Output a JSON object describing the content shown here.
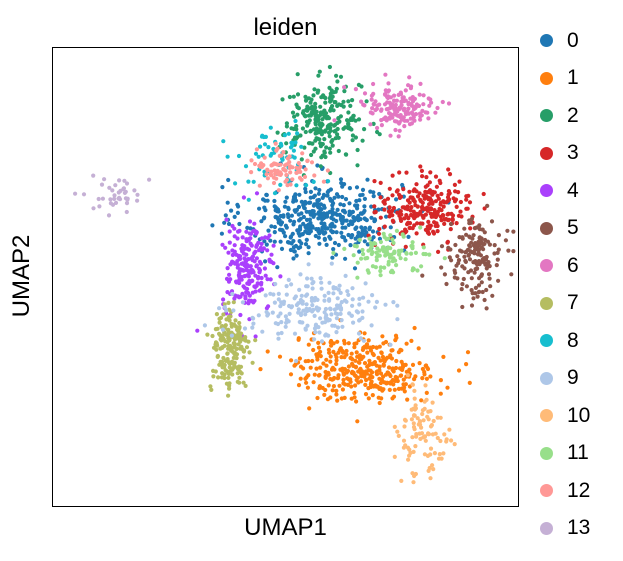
{
  "chart_data": {
    "type": "scatter",
    "title": "leiden",
    "xlabel": "UMAP1",
    "ylabel": "UMAP2",
    "axis_ticks": false,
    "grid": false,
    "legend_position": "right",
    "legend_title": "",
    "xlim": [
      0,
      100
    ],
    "ylim": [
      0,
      100
    ],
    "clusters": [
      {
        "name": "0",
        "color": "#1f77b4",
        "center": [
          58,
          63
        ],
        "spread": [
          12,
          6
        ],
        "count": 420
      },
      {
        "name": "1",
        "color": "#ff7f0e",
        "center": [
          67,
          30
        ],
        "spread": [
          11,
          5
        ],
        "count": 360
      },
      {
        "name": "2",
        "color": "#279e68",
        "center": [
          58,
          84
        ],
        "spread": [
          6,
          6
        ],
        "count": 240
      },
      {
        "name": "3",
        "color": "#d62728",
        "center": [
          80,
          65
        ],
        "spread": [
          7,
          5
        ],
        "count": 250
      },
      {
        "name": "4",
        "color": "#aa40fc",
        "center": [
          42,
          52
        ],
        "spread": [
          4,
          7
        ],
        "count": 200
      },
      {
        "name": "5",
        "color": "#8c564b",
        "center": [
          91,
          54
        ],
        "spread": [
          4,
          6
        ],
        "count": 160
      },
      {
        "name": "6",
        "color": "#e377c2",
        "center": [
          74,
          87
        ],
        "spread": [
          6,
          4
        ],
        "count": 160
      },
      {
        "name": "7",
        "color": "#b5bd61",
        "center": [
          38,
          34
        ],
        "spread": [
          3,
          7
        ],
        "count": 180
      },
      {
        "name": "8",
        "color": "#17becf",
        "center": [
          48,
          75
        ],
        "spread": [
          6,
          5
        ],
        "count": 70
      },
      {
        "name": "9",
        "color": "#aec7e8",
        "center": [
          56,
          43
        ],
        "spread": [
          11,
          5
        ],
        "count": 200
      },
      {
        "name": "10",
        "color": "#ffbb78",
        "center": [
          80,
          16
        ],
        "spread": [
          4,
          7
        ],
        "count": 100
      },
      {
        "name": "11",
        "color": "#98df8a",
        "center": [
          71,
          55
        ],
        "spread": [
          6,
          3
        ],
        "count": 100
      },
      {
        "name": "12",
        "color": "#ff9896",
        "center": [
          50,
          74
        ],
        "spread": [
          5,
          3
        ],
        "count": 80
      },
      {
        "name": "13",
        "color": "#c5b0d5",
        "center": [
          14,
          68
        ],
        "spread": [
          4,
          3
        ],
        "count": 40
      }
    ]
  }
}
